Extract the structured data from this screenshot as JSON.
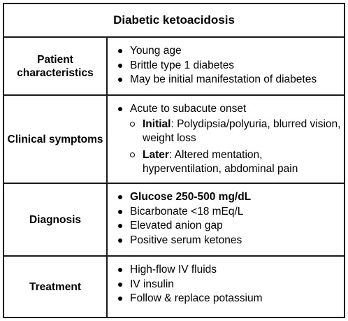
{
  "title": "Diabetic ketoacidosis",
  "rows": [
    {
      "label": "Patient characteristics",
      "items": [
        "Young age",
        "Brittle type 1 diabetes",
        "May be initial manifestation of diabetes"
      ]
    },
    {
      "label": "Clinical symptoms",
      "items": [
        "Acute to subacute onset"
      ],
      "subitems": [
        {
          "term": "Initial",
          "text": ": Polydipsia/polyuria, blurred vision, weight loss"
        },
        {
          "term": "Later",
          "text": ": Altered mentation, hyperventilation, abdominal pain"
        }
      ]
    },
    {
      "label": "Diagnosis",
      "items": [
        "Glucose 250-500 mg/dL",
        "Bicarbonate <18 mEq/L",
        "Elevated anion gap",
        "Positive serum ketones"
      ]
    },
    {
      "label": "Treatment",
      "items": [
        "High-flow IV fluids",
        "IV insulin",
        "Follow & replace potassium"
      ]
    }
  ]
}
